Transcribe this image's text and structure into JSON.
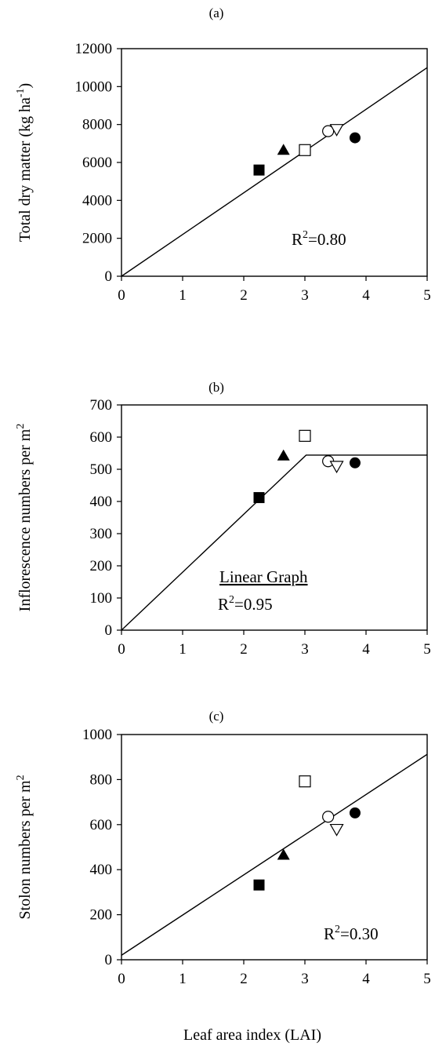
{
  "chart_data": [
    {
      "type": "scatter",
      "title": "(a)",
      "xlabel": "",
      "ylabel": "Total dry matter (kg ha",
      "ylabel_sup": "-1",
      "ylabel_end": ")",
      "xlim": [
        0,
        5
      ],
      "ylim": [
        0,
        12000
      ],
      "xticks": [
        0,
        1,
        2,
        3,
        4,
        5
      ],
      "yticks": [
        0,
        2000,
        4000,
        6000,
        8000,
        10000,
        12000
      ],
      "grid": false,
      "points": [
        {
          "x": 2.25,
          "y": 5600,
          "marker": "filled-square"
        },
        {
          "x": 2.65,
          "y": 6650,
          "marker": "filled-triangle"
        },
        {
          "x": 3.0,
          "y": 6650,
          "marker": "open-square"
        },
        {
          "x": 3.38,
          "y": 7650,
          "marker": "open-circle"
        },
        {
          "x": 3.52,
          "y": 7750,
          "marker": "open-triangle-down"
        },
        {
          "x": 3.82,
          "y": 7300,
          "marker": "filled-circle"
        }
      ],
      "fit_line": [
        [
          0,
          0
        ],
        [
          5,
          11000
        ]
      ],
      "annotation": {
        "text": "R",
        "sup": "2",
        "text_end": "=0.80"
      }
    },
    {
      "type": "scatter",
      "title": "(b)",
      "xlabel": "",
      "ylabel": "Inflorescence numbers per m",
      "ylabel_sup": "2",
      "ylabel_end": "",
      "xlim": [
        0,
        5
      ],
      "ylim": [
        0,
        700
      ],
      "xticks": [
        0,
        1,
        2,
        3,
        4,
        5
      ],
      "yticks": [
        0,
        100,
        200,
        300,
        400,
        500,
        600,
        700
      ],
      "grid": false,
      "points": [
        {
          "x": 2.25,
          "y": 412,
          "marker": "filled-square"
        },
        {
          "x": 2.65,
          "y": 542,
          "marker": "filled-triangle"
        },
        {
          "x": 3.0,
          "y": 604,
          "marker": "open-square"
        },
        {
          "x": 3.38,
          "y": 525,
          "marker": "open-circle"
        },
        {
          "x": 3.52,
          "y": 510,
          "marker": "open-triangle-down"
        },
        {
          "x": 3.82,
          "y": 520,
          "marker": "filled-circle"
        }
      ],
      "fit_line": [
        [
          0,
          0
        ],
        [
          3.02,
          544
        ],
        [
          5,
          544
        ]
      ],
      "caption": "Linear Graph",
      "annotation": {
        "text": "R",
        "sup": "2",
        "text_end": "=0.95"
      }
    },
    {
      "type": "scatter",
      "title": "(c)",
      "xlabel": "Leaf area index (LAI)",
      "ylabel": "Stolon numbers per m",
      "ylabel_sup": "2",
      "ylabel_end": "",
      "xlim": [
        0,
        5
      ],
      "ylim": [
        0,
        1000
      ],
      "xticks": [
        0,
        1,
        2,
        3,
        4,
        5
      ],
      "yticks": [
        0,
        200,
        400,
        600,
        800,
        1000
      ],
      "grid": false,
      "points": [
        {
          "x": 2.25,
          "y": 332,
          "marker": "filled-square"
        },
        {
          "x": 2.65,
          "y": 465,
          "marker": "filled-triangle"
        },
        {
          "x": 3.0,
          "y": 792,
          "marker": "open-square"
        },
        {
          "x": 3.38,
          "y": 635,
          "marker": "open-circle"
        },
        {
          "x": 3.52,
          "y": 580,
          "marker": "open-triangle-down"
        },
        {
          "x": 3.82,
          "y": 652,
          "marker": "filled-circle"
        }
      ],
      "fit_line": [
        [
          0,
          20
        ],
        [
          5,
          912
        ]
      ],
      "annotation": {
        "text": "R",
        "sup": "2",
        "text_end": "=0.30"
      }
    }
  ]
}
